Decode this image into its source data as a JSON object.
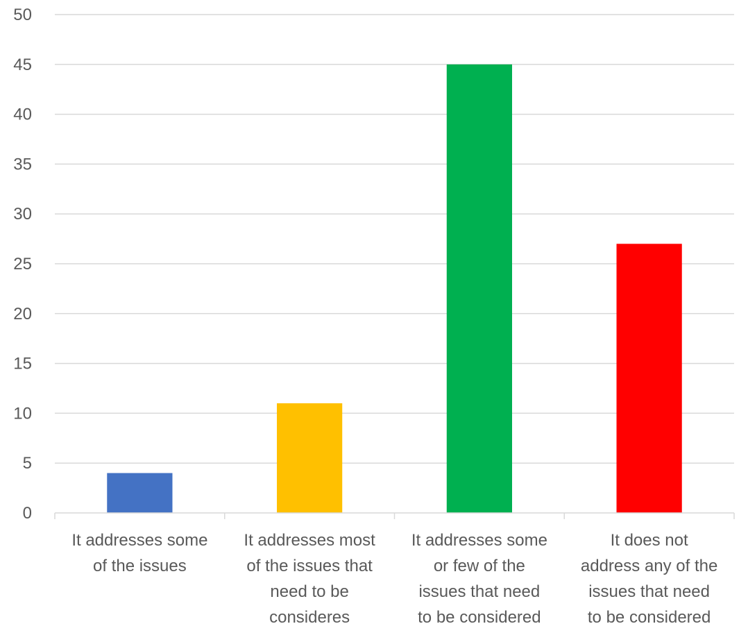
{
  "chart_data": {
    "type": "bar",
    "categories": [
      [
        "It addresses some",
        "of the issues"
      ],
      [
        "It addresses most",
        "of the issues that",
        "need to be",
        "consideres"
      ],
      [
        "It addresses some",
        "or few of the",
        "issues that need",
        "to be considered"
      ],
      [
        "It does not",
        "address any of the",
        "issues that need",
        "to be considered"
      ]
    ],
    "values": [
      4,
      11,
      45,
      27
    ],
    "colors": [
      "#4472C4",
      "#FFC000",
      "#00B050",
      "#FF0000"
    ],
    "ylim": [
      0,
      50
    ],
    "yticks": [
      0,
      5,
      10,
      15,
      20,
      25,
      30,
      35,
      40,
      45,
      50
    ],
    "title": "",
    "xlabel": "",
    "ylabel": "",
    "grid": true,
    "legend": "none"
  }
}
